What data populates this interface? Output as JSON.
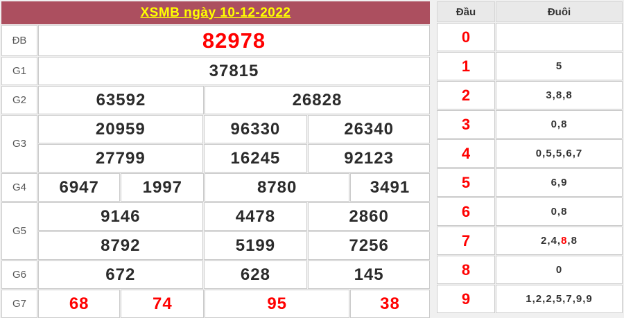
{
  "results": {
    "title": "XSMB ngày 10-12-2022",
    "rows": [
      {
        "label": "ĐB",
        "accent": "red",
        "size": "big",
        "lines": [
          [
            "82978"
          ]
        ]
      },
      {
        "label": "G1",
        "lines": [
          [
            "37815"
          ]
        ]
      },
      {
        "label": "G2",
        "lines": [
          [
            "63592",
            "26828"
          ]
        ]
      },
      {
        "label": "G3",
        "lines": [
          [
            "20959",
            "96330",
            "26340"
          ],
          [
            "27799",
            "16245",
            "92123"
          ]
        ]
      },
      {
        "label": "G4",
        "lines": [
          [
            "6947",
            "1997",
            "8780",
            "3491"
          ]
        ]
      },
      {
        "label": "G5",
        "lines": [
          [
            "9146",
            "4478",
            "2860"
          ],
          [
            "8792",
            "5199",
            "7256"
          ]
        ]
      },
      {
        "label": "G6",
        "lines": [
          [
            "672",
            "628",
            "145"
          ]
        ]
      },
      {
        "label": "G7",
        "accent": "red",
        "lines": [
          [
            "68",
            "74",
            "95",
            "38"
          ]
        ]
      }
    ]
  },
  "dau_duoi": {
    "headers": {
      "dau": "Đầu",
      "duoi": "Đuôi"
    },
    "rows": [
      {
        "dau": "0",
        "duoi": []
      },
      {
        "dau": "1",
        "duoi": [
          "5"
        ]
      },
      {
        "dau": "2",
        "duoi": [
          "3",
          "8",
          "8"
        ]
      },
      {
        "dau": "3",
        "duoi": [
          "0",
          "8"
        ]
      },
      {
        "dau": "4",
        "duoi": [
          "0",
          "5",
          "5",
          "6",
          "7"
        ]
      },
      {
        "dau": "5",
        "duoi": [
          "6",
          "9"
        ]
      },
      {
        "dau": "6",
        "duoi": [
          "0",
          "8"
        ]
      },
      {
        "dau": "7",
        "duoi": [
          "2",
          "4",
          "8",
          "8"
        ],
        "red_index": 2
      },
      {
        "dau": "8",
        "duoi": [
          "0"
        ]
      },
      {
        "dau": "9",
        "duoi": [
          "1",
          "2",
          "2",
          "5",
          "7",
          "9",
          "9"
        ]
      }
    ]
  },
  "colors": {
    "header_maroon": "#ac4f5f",
    "title_yellow": "#ffff00",
    "highlight_red": "#ff0000",
    "value_black": "#2b2b2b",
    "border_gray": "#cccccc",
    "page_bg": "#f0f0f0"
  }
}
